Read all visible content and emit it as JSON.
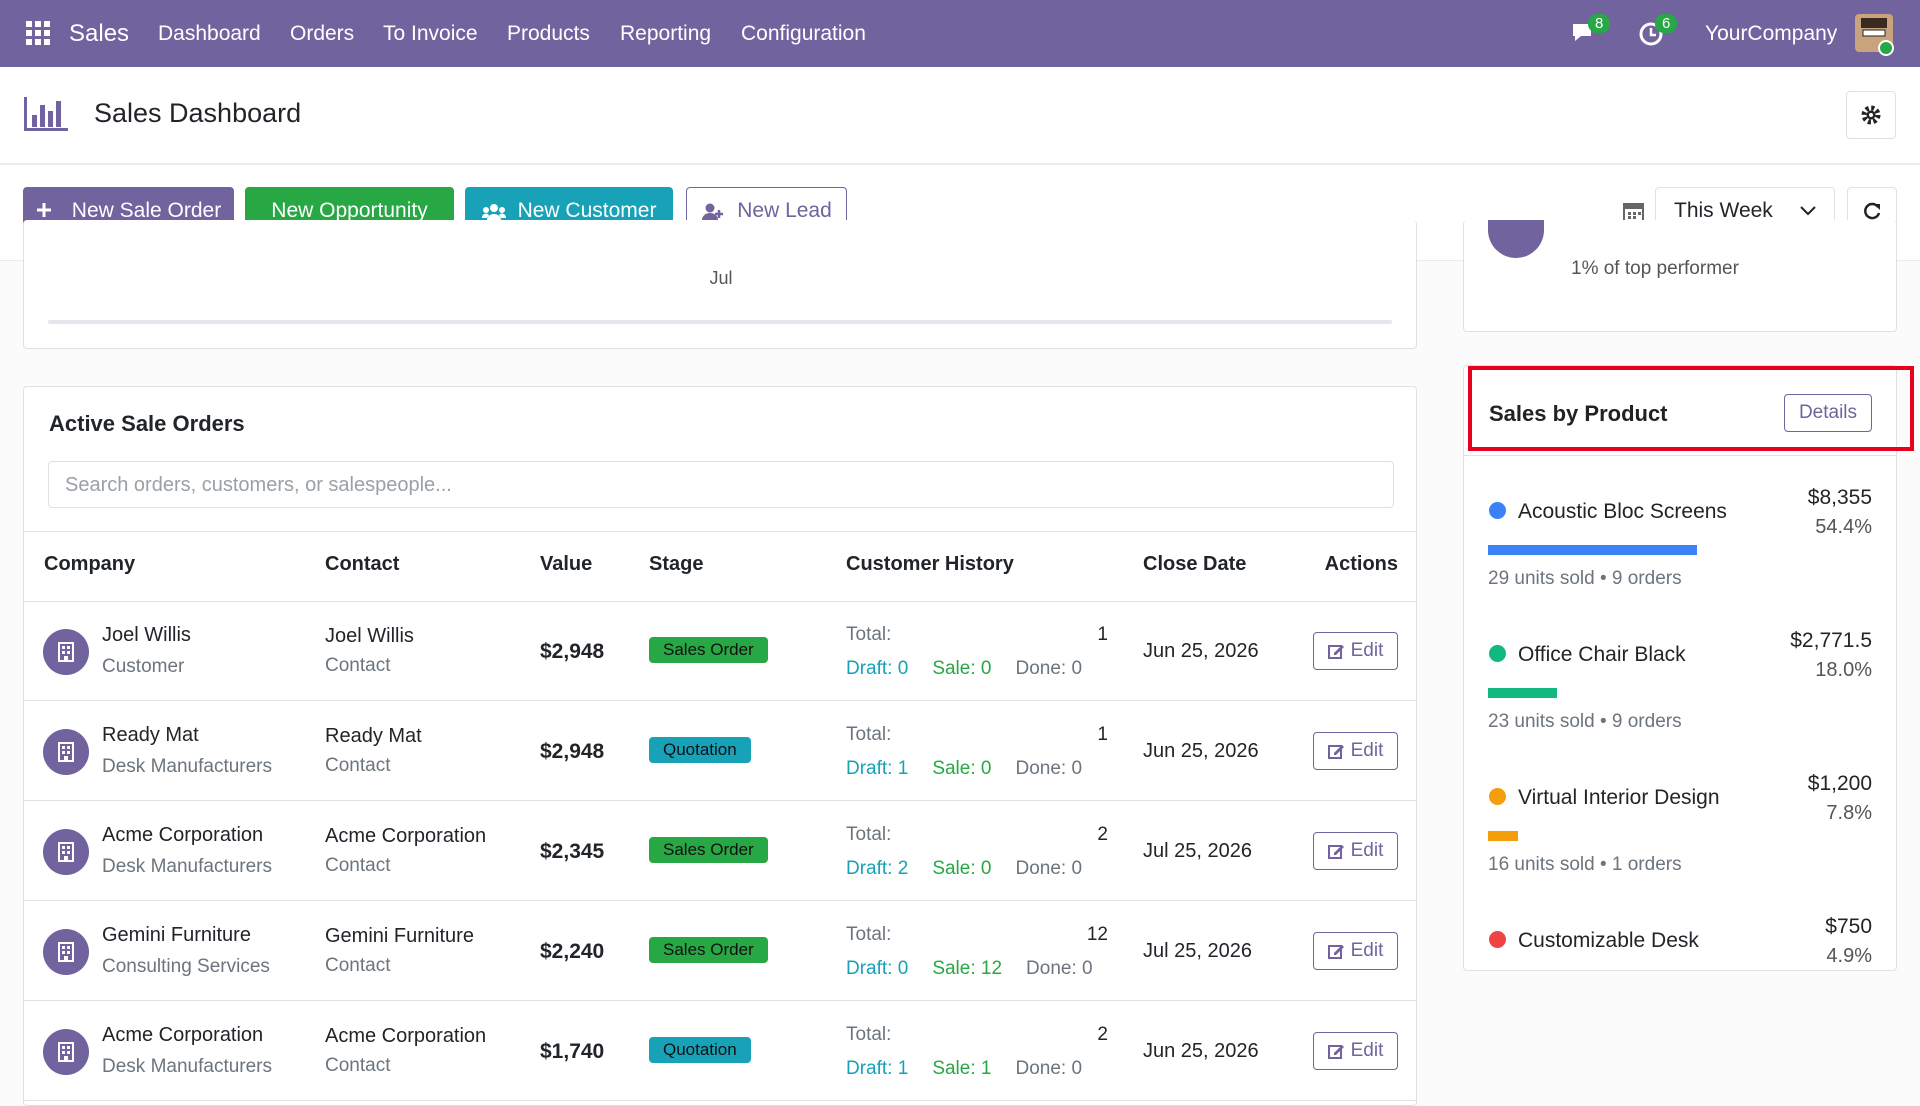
{
  "nav": {
    "app": "Sales",
    "menu": [
      "Dashboard",
      "Orders",
      "To Invoice",
      "Products",
      "Reporting",
      "Configuration"
    ],
    "messages_badge": "8",
    "activities_badge": "6",
    "company": "YourCompany"
  },
  "header": {
    "title": "Sales Dashboard"
  },
  "toolbar": {
    "buttons": [
      {
        "label": "New Sale Order",
        "color": "#71639e"
      },
      {
        "label": "New Opportunity",
        "color": "#28a745"
      },
      {
        "label": "New Customer",
        "color": "#17a2b8"
      },
      {
        "label": "New Lead",
        "color": "#ffffff"
      }
    ],
    "period": "This Week"
  },
  "chart_fragment": {
    "x_label": "Jul"
  },
  "performer": {
    "text": "1% of top performer"
  },
  "orders": {
    "title": "Active Sale Orders",
    "search_placeholder": "Search orders, customers, or salespeople...",
    "columns": [
      "Company",
      "Contact",
      "Value",
      "Stage",
      "Customer History",
      "Close Date",
      "Actions"
    ],
    "rows": [
      {
        "company": "Joel Willis",
        "company_type": "Customer",
        "contact": "Joel Willis",
        "contact_role": "Contact",
        "value": "$2,948",
        "stage": {
          "label": "Sales Order",
          "color": "#28a745"
        },
        "total_label": "Total:",
        "total": "1",
        "draft": "Draft: 0",
        "sale": "Sale: 0",
        "done": "Done: 0",
        "close_date": "Jun 25, 2026",
        "action": "Edit"
      },
      {
        "company": "Ready Mat",
        "company_type": "Desk Manufacturers",
        "contact": "Ready Mat",
        "contact_role": "Contact",
        "value": "$2,948",
        "stage": {
          "label": "Quotation",
          "color": "#17a2b8"
        },
        "total_label": "Total:",
        "total": "1",
        "draft": "Draft: 1",
        "sale": "Sale: 0",
        "done": "Done: 0",
        "close_date": "Jun 25, 2026",
        "action": "Edit"
      },
      {
        "company": "Acme Corporation",
        "company_type": "Desk Manufacturers",
        "contact": "Acme Corporation",
        "contact_role": "Contact",
        "value": "$2,345",
        "stage": {
          "label": "Sales Order",
          "color": "#28a745"
        },
        "total_label": "Total:",
        "total": "2",
        "draft": "Draft: 2",
        "sale": "Sale: 0",
        "done": "Done: 0",
        "close_date": "Jul 25, 2026",
        "action": "Edit"
      },
      {
        "company": "Gemini Furniture",
        "company_type": "Consulting Services",
        "contact": "Gemini Furniture",
        "contact_role": "Contact",
        "value": "$2,240",
        "stage": {
          "label": "Sales Order",
          "color": "#28a745"
        },
        "total_label": "Total:",
        "total": "12",
        "draft": "Draft: 0",
        "sale": "Sale: 12",
        "done": "Done: 0",
        "close_date": "Jul 25, 2026",
        "action": "Edit"
      },
      {
        "company": "Acme Corporation",
        "company_type": "Desk Manufacturers",
        "contact": "Acme Corporation",
        "contact_role": "Contact",
        "value": "$1,740",
        "stage": {
          "label": "Quotation",
          "color": "#17a2b8"
        },
        "total_label": "Total:",
        "total": "2",
        "draft": "Draft: 1",
        "sale": "Sale: 1",
        "done": "Done: 0",
        "close_date": "Jun 25, 2026",
        "action": "Edit"
      }
    ]
  },
  "sales_by_product": {
    "title": "Sales by Product",
    "details": "Details",
    "products": [
      {
        "name": "Acoustic Bloc Screens",
        "amount": "$8,355",
        "share": {
          "value": 54.4,
          "label": "54.4%"
        },
        "stats": "29 units sold • 9 orders",
        "color": "#3b82f6"
      },
      {
        "name": "Office Chair Black",
        "amount": "$2,771.5",
        "share": {
          "value": 18.0,
          "label": "18.0%"
        },
        "stats": "23 units sold • 9 orders",
        "color": "#10b981"
      },
      {
        "name": "Virtual Interior Design",
        "amount": "$1,200",
        "share": {
          "value": 7.8,
          "label": "7.8%"
        },
        "stats": "16 units sold • 1 orders",
        "color": "#f59e0b"
      },
      {
        "name": "Customizable Desk",
        "amount": "$750",
        "share": {
          "value": 4.9,
          "label": "4.9%"
        },
        "color": "#ef4444"
      }
    ]
  }
}
